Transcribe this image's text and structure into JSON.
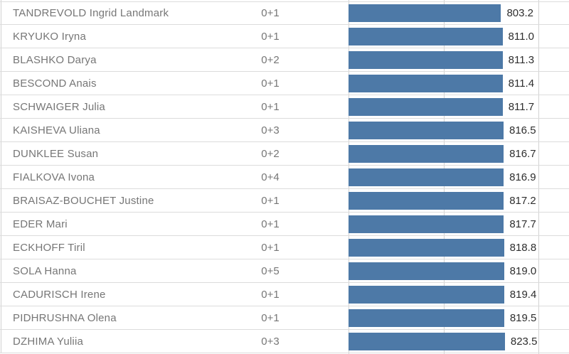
{
  "colors": {
    "bar": "#4d79a7",
    "text_muted": "#767676",
    "text_value": "#2e2e2e",
    "gridline_horizontal": "#dcdcdc",
    "gridline_vertical": "#d2d2d2"
  },
  "chart_data": {
    "type": "bar",
    "orientation": "horizontal",
    "title": "",
    "legend": "none",
    "grid": "on",
    "xlim": [
      0,
      1161
    ],
    "gridlines_x": [
      0,
      500,
      1000
    ],
    "categories": [
      "TANDREVOLD Ingrid Landmark",
      "KRYUKO Iryna",
      "BLASHKO Darya",
      "BESCOND Anais",
      "SCHWAIGER Julia",
      "KAISHEVA Uliana",
      "DUNKLEE Susan",
      "FIALKOVA Ivona",
      "BRAISAZ-BOUCHET Justine",
      "EDER Mari",
      "ECKHOFF Tiril",
      "SOLA Hanna",
      "CADURISCH Irene",
      "PIDHRUSHNA Olena",
      "DZHIMA Yuliia"
    ],
    "shootings": [
      "0+1",
      "0+1",
      "0+2",
      "0+1",
      "0+1",
      "0+3",
      "0+2",
      "0+4",
      "0+1",
      "0+1",
      "0+1",
      "0+5",
      "0+1",
      "0+1",
      "0+3"
    ],
    "values": [
      803.2,
      811.0,
      811.3,
      811.4,
      811.7,
      816.5,
      816.7,
      816.9,
      817.2,
      817.7,
      818.8,
      819.0,
      819.4,
      819.5,
      823.5
    ],
    "value_labels": [
      "803.2",
      "811.0",
      "811.3",
      "811.4",
      "811.7",
      "816.5",
      "816.7",
      "816.9",
      "817.2",
      "817.7",
      "818.8",
      "819.0",
      "819.4",
      "819.5",
      "823.5"
    ]
  }
}
